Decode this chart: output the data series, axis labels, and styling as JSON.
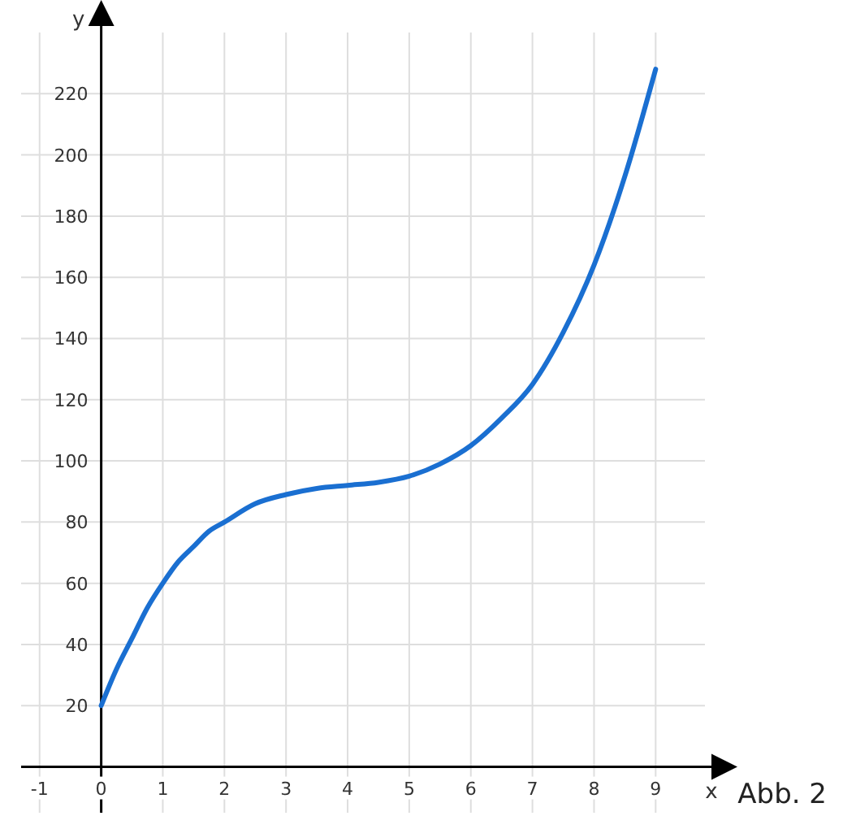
{
  "chart_data": {
    "type": "line",
    "xlabel": "x",
    "ylabel": "y",
    "annotations": [
      "Abb. 2"
    ],
    "series": [
      {
        "color": "#1a6fd1",
        "x": [
          0,
          0.25,
          0.5,
          0.75,
          1,
          1.25,
          1.5,
          1.75,
          2,
          2.5,
          3,
          3.5,
          4,
          4.5,
          5,
          5.5,
          6,
          6.5,
          7,
          7.5,
          8,
          8.5,
          9
        ],
        "values": [
          20,
          32,
          42,
          52,
          60,
          67,
          72,
          77,
          80,
          86,
          89,
          91,
          92,
          93,
          95,
          99,
          105,
          114,
          125,
          142,
          164,
          193,
          228
        ]
      }
    ],
    "xlim": [
      -1.3,
      9.8
    ],
    "ylim": [
      -15,
      240
    ],
    "xticks": [
      -1,
      {
        "value": 0,
        "label": "0"
      },
      1,
      2,
      3,
      4,
      5,
      6,
      7,
      8,
      9
    ],
    "yticks": [
      20,
      40,
      60,
      80,
      100,
      120,
      140,
      160,
      180,
      200,
      220
    ],
    "grid": true,
    "marker": "none",
    "line_style": "solid"
  }
}
